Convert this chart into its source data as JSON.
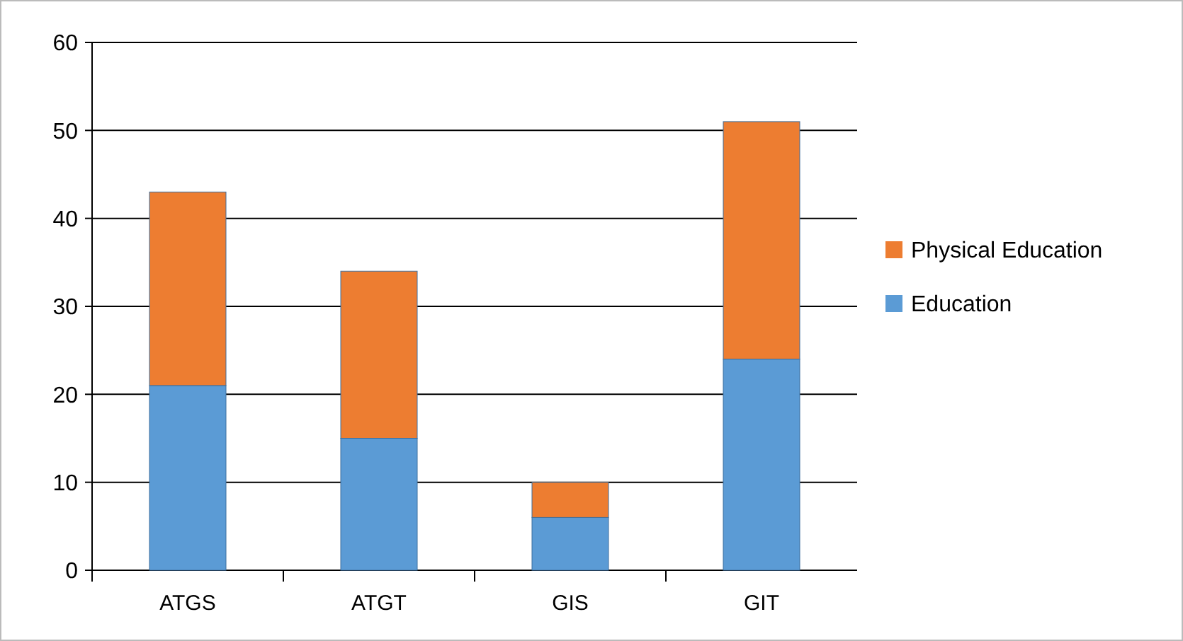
{
  "chart_data": {
    "type": "bar",
    "stacked": true,
    "categories": [
      "ATGS",
      "ATGT",
      "GIS",
      "GIT"
    ],
    "series": [
      {
        "name": "Education",
        "color": "#5b9bd5",
        "values": [
          21,
          15,
          6,
          24
        ]
      },
      {
        "name": "Physical Education",
        "color": "#ed7d31",
        "values": [
          22,
          19,
          4,
          27
        ]
      }
    ],
    "ylim": [
      0,
      60
    ],
    "yticks": [
      0,
      10,
      20,
      30,
      40,
      50,
      60
    ],
    "grid": "y",
    "legend": "right"
  }
}
